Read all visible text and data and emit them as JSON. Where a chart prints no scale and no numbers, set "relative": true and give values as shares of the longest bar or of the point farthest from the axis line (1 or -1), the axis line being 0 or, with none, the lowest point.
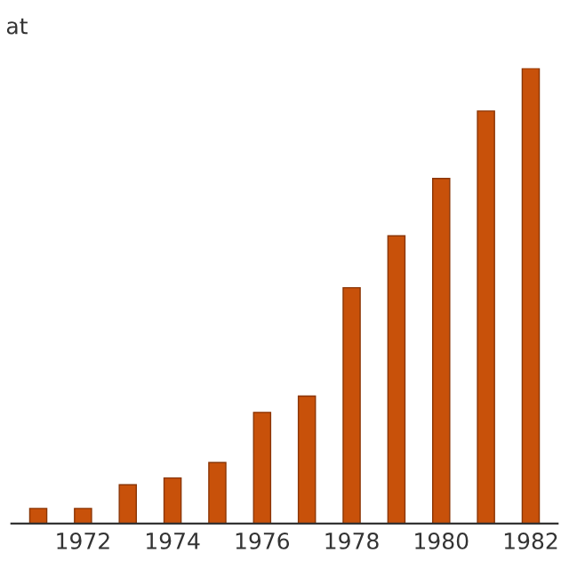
{
  "chart_data": {
    "type": "bar",
    "title": "at",
    "relative": true,
    "color": "#c8510a",
    "categories": [
      null,
      "1972",
      null,
      "1974",
      null,
      "1976",
      null,
      "1978",
      null,
      "1980",
      null,
      "1982"
    ],
    "values": [
      0.033,
      0.033,
      0.085,
      0.1,
      0.134,
      0.244,
      0.28,
      0.518,
      0.632,
      0.758,
      0.906,
      1
    ],
    "grid": false,
    "legend": false
  }
}
